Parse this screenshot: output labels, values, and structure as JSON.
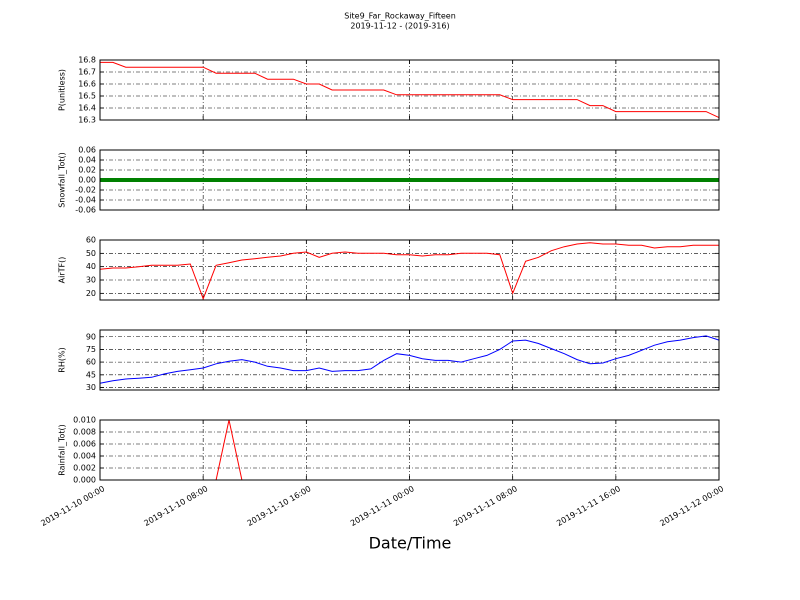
{
  "chart_data": [
    {
      "type": "line",
      "title": "Site9_Far_Rockaway_Fifteen",
      "subtitle": "2019-11-12 - (2019-316)",
      "ylabel": "P(unitless)",
      "x": [
        "2019-11-10 00:00",
        "2019-11-10 01:00",
        "2019-11-10 02:00",
        "2019-11-10 03:00",
        "2019-11-10 04:00",
        "2019-11-10 05:00",
        "2019-11-10 06:00",
        "2019-11-10 07:00",
        "2019-11-10 08:00",
        "2019-11-10 09:00",
        "2019-11-10 10:00",
        "2019-11-10 11:00",
        "2019-11-10 12:00",
        "2019-11-10 13:00",
        "2019-11-10 14:00",
        "2019-11-10 15:00",
        "2019-11-10 16:00",
        "2019-11-10 17:00",
        "2019-11-10 18:00",
        "2019-11-10 19:00",
        "2019-11-10 20:00",
        "2019-11-10 21:00",
        "2019-11-10 22:00",
        "2019-11-10 23:00",
        "2019-11-11 00:00",
        "2019-11-11 01:00",
        "2019-11-11 02:00",
        "2019-11-11 03:00",
        "2019-11-11 04:00",
        "2019-11-11 05:00",
        "2019-11-11 06:00",
        "2019-11-11 07:00",
        "2019-11-11 08:00",
        "2019-11-11 09:00",
        "2019-11-11 10:00",
        "2019-11-11 11:00",
        "2019-11-11 12:00",
        "2019-11-11 13:00",
        "2019-11-11 14:00",
        "2019-11-11 15:00",
        "2019-11-11 16:00",
        "2019-11-11 17:00",
        "2019-11-11 18:00",
        "2019-11-11 19:00",
        "2019-11-11 20:00",
        "2019-11-11 21:00",
        "2019-11-11 22:00",
        "2019-11-11 23:00",
        "2019-11-12 00:00"
      ],
      "series": [
        {
          "color": "#ff0000",
          "values": [
            16.78,
            16.78,
            16.74,
            16.74,
            16.74,
            16.74,
            16.74,
            16.74,
            16.74,
            16.69,
            16.69,
            16.69,
            16.69,
            16.64,
            16.64,
            16.64,
            16.6,
            16.6,
            16.55,
            16.55,
            16.55,
            16.55,
            16.55,
            16.51,
            16.51,
            16.51,
            16.51,
            16.51,
            16.51,
            16.51,
            16.51,
            16.51,
            16.47,
            16.47,
            16.47,
            16.47,
            16.47,
            16.47,
            16.42,
            16.42,
            16.37,
            16.37,
            16.37,
            16.37,
            16.37,
            16.37,
            16.37,
            16.37,
            16.32
          ]
        }
      ],
      "xlim": [
        "2019-11-10 00:00",
        "2019-11-12 00:00"
      ],
      "xticks": [
        "2019-11-10 00:00",
        "2019-11-10 08:00",
        "2019-11-10 16:00",
        "2019-11-11 00:00",
        "2019-11-11 08:00",
        "2019-11-11 16:00",
        "2019-11-12 00:00"
      ],
      "ylim": [
        16.3,
        16.8
      ],
      "yticks": [
        16.3,
        16.4,
        16.5,
        16.6,
        16.7,
        16.8
      ],
      "grid": true
    },
    {
      "type": "line",
      "ylabel": "Snowfall_Tot()",
      "x": [
        "2019-11-10 00:00",
        "2019-11-10 01:00",
        "2019-11-10 02:00",
        "2019-11-10 03:00",
        "2019-11-10 04:00",
        "2019-11-10 05:00",
        "2019-11-10 06:00",
        "2019-11-10 07:00",
        "2019-11-10 08:00",
        "2019-11-10 09:00",
        "2019-11-10 10:00",
        "2019-11-10 11:00",
        "2019-11-10 12:00",
        "2019-11-10 13:00",
        "2019-11-10 14:00",
        "2019-11-10 15:00",
        "2019-11-10 16:00",
        "2019-11-10 17:00",
        "2019-11-10 18:00",
        "2019-11-10 19:00",
        "2019-11-10 20:00",
        "2019-11-10 21:00",
        "2019-11-10 22:00",
        "2019-11-10 23:00",
        "2019-11-11 00:00",
        "2019-11-11 01:00",
        "2019-11-11 02:00",
        "2019-11-11 03:00",
        "2019-11-11 04:00",
        "2019-11-11 05:00",
        "2019-11-11 06:00",
        "2019-11-11 07:00",
        "2019-11-11 08:00",
        "2019-11-11 09:00",
        "2019-11-11 10:00",
        "2019-11-11 11:00",
        "2019-11-11 12:00",
        "2019-11-11 13:00",
        "2019-11-11 14:00",
        "2019-11-11 15:00",
        "2019-11-11 16:00",
        "2019-11-11 17:00",
        "2019-11-11 18:00",
        "2019-11-11 19:00",
        "2019-11-11 20:00",
        "2019-11-11 21:00",
        "2019-11-11 22:00",
        "2019-11-11 23:00",
        "2019-11-12 00:00"
      ],
      "series": [
        {
          "color": "#008000",
          "values": [
            0,
            0,
            0,
            0,
            0,
            0,
            0,
            0,
            0,
            0,
            0,
            0,
            0,
            0,
            0,
            0,
            0,
            0,
            0,
            0,
            0,
            0,
            0,
            0,
            0,
            0,
            0,
            0,
            0,
            0,
            0,
            0,
            0,
            0,
            0,
            0,
            0,
            0,
            0,
            0,
            0,
            0,
            0,
            0,
            0,
            0,
            0,
            0,
            0
          ]
        }
      ],
      "xlim": [
        "2019-11-10 00:00",
        "2019-11-12 00:00"
      ],
      "xticks": [
        "2019-11-10 00:00",
        "2019-11-10 08:00",
        "2019-11-10 16:00",
        "2019-11-11 00:00",
        "2019-11-11 08:00",
        "2019-11-11 16:00",
        "2019-11-12 00:00"
      ],
      "ylim": [
        -0.06,
        0.06
      ],
      "yticks": [
        -0.06,
        -0.04,
        -0.02,
        {
          "value": 0,
          "label": "0.00"
        },
        0.02,
        0.04,
        0.06
      ],
      "grid": true
    },
    {
      "type": "line",
      "ylabel": "AirTF()",
      "x": [
        "2019-11-10 00:00",
        "2019-11-10 01:00",
        "2019-11-10 02:00",
        "2019-11-10 03:00",
        "2019-11-10 04:00",
        "2019-11-10 05:00",
        "2019-11-10 06:00",
        "2019-11-10 07:00",
        "2019-11-10 08:00",
        "2019-11-10 09:00",
        "2019-11-10 10:00",
        "2019-11-10 11:00",
        "2019-11-10 12:00",
        "2019-11-10 13:00",
        "2019-11-10 14:00",
        "2019-11-10 15:00",
        "2019-11-10 16:00",
        "2019-11-10 17:00",
        "2019-11-10 18:00",
        "2019-11-10 19:00",
        "2019-11-10 20:00",
        "2019-11-10 21:00",
        "2019-11-10 22:00",
        "2019-11-10 23:00",
        "2019-11-11 00:00",
        "2019-11-11 01:00",
        "2019-11-11 02:00",
        "2019-11-11 03:00",
        "2019-11-11 04:00",
        "2019-11-11 05:00",
        "2019-11-11 06:00",
        "2019-11-11 07:00",
        "2019-11-11 08:00",
        "2019-11-11 09:00",
        "2019-11-11 10:00",
        "2019-11-11 11:00",
        "2019-11-11 12:00",
        "2019-11-11 13:00",
        "2019-11-11 14:00",
        "2019-11-11 15:00",
        "2019-11-11 16:00",
        "2019-11-11 17:00",
        "2019-11-11 18:00",
        "2019-11-11 19:00",
        "2019-11-11 20:00",
        "2019-11-11 21:00",
        "2019-11-11 22:00",
        "2019-11-11 23:00",
        "2019-11-12 00:00"
      ],
      "series": [
        {
          "color": "#ff0000",
          "values": [
            38,
            39,
            39,
            40,
            41,
            41,
            41,
            42,
            16,
            41,
            43,
            45,
            46,
            47,
            48,
            50,
            51,
            47,
            50,
            51,
            50,
            50,
            50,
            49,
            49,
            48,
            49,
            49,
            50,
            50,
            50,
            49,
            20,
            44,
            47,
            52,
            55,
            57,
            58,
            57,
            57,
            56,
            56,
            54,
            55,
            55,
            56,
            56,
            56
          ]
        }
      ],
      "xlim": [
        "2019-11-10 00:00",
        "2019-11-12 00:00"
      ],
      "xticks": [
        "2019-11-10 00:00",
        "2019-11-10 08:00",
        "2019-11-10 16:00",
        "2019-11-11 00:00",
        "2019-11-11 08:00",
        "2019-11-11 16:00",
        "2019-11-12 00:00"
      ],
      "ylim": [
        15,
        60
      ],
      "yticks": [
        20,
        30,
        40,
        50,
        60
      ],
      "grid": true
    },
    {
      "type": "line",
      "ylabel": "RH(%)",
      "x": [
        "2019-11-10 00:00",
        "2019-11-10 01:00",
        "2019-11-10 02:00",
        "2019-11-10 03:00",
        "2019-11-10 04:00",
        "2019-11-10 05:00",
        "2019-11-10 06:00",
        "2019-11-10 07:00",
        "2019-11-10 08:00",
        "2019-11-10 09:00",
        "2019-11-10 10:00",
        "2019-11-10 11:00",
        "2019-11-10 12:00",
        "2019-11-10 13:00",
        "2019-11-10 14:00",
        "2019-11-10 15:00",
        "2019-11-10 16:00",
        "2019-11-10 17:00",
        "2019-11-10 18:00",
        "2019-11-10 19:00",
        "2019-11-10 20:00",
        "2019-11-10 21:00",
        "2019-11-10 22:00",
        "2019-11-10 23:00",
        "2019-11-11 00:00",
        "2019-11-11 01:00",
        "2019-11-11 02:00",
        "2019-11-11 03:00",
        "2019-11-11 04:00",
        "2019-11-11 05:00",
        "2019-11-11 06:00",
        "2019-11-11 07:00",
        "2019-11-11 08:00",
        "2019-11-11 09:00",
        "2019-11-11 10:00",
        "2019-11-11 11:00",
        "2019-11-11 12:00",
        "2019-11-11 13:00",
        "2019-11-11 14:00",
        "2019-11-11 15:00",
        "2019-11-11 16:00",
        "2019-11-11 17:00",
        "2019-11-11 18:00",
        "2019-11-11 19:00",
        "2019-11-11 20:00",
        "2019-11-11 21:00",
        "2019-11-11 22:00",
        "2019-11-11 23:00",
        "2019-11-12 00:00"
      ],
      "series": [
        {
          "color": "#0000ff",
          "values": [
            35,
            38,
            40,
            41,
            42,
            46,
            49,
            51,
            53,
            58,
            61,
            63,
            60,
            55,
            53,
            50,
            50,
            53,
            49,
            50,
            50,
            52,
            62,
            70,
            68,
            64,
            62,
            62,
            60,
            64,
            68,
            75,
            85,
            86,
            82,
            76,
            70,
            63,
            58,
            59,
            64,
            68,
            74,
            80,
            84,
            86,
            89,
            91,
            86
          ]
        }
      ],
      "xlim": [
        "2019-11-10 00:00",
        "2019-11-12 00:00"
      ],
      "xticks": [
        "2019-11-10 00:00",
        "2019-11-10 08:00",
        "2019-11-10 16:00",
        "2019-11-11 00:00",
        "2019-11-11 08:00",
        "2019-11-11 16:00",
        "2019-11-12 00:00"
      ],
      "ylim": [
        27,
        98
      ],
      "yticks": [
        30,
        45,
        60,
        75,
        90
      ],
      "grid": true
    },
    {
      "type": "line",
      "ylabel": "Rainfall_Tot()",
      "xlabel": "Date/Time",
      "x": [
        "2019-11-10 00:00",
        "2019-11-10 01:00",
        "2019-11-10 02:00",
        "2019-11-10 03:00",
        "2019-11-10 04:00",
        "2019-11-10 05:00",
        "2019-11-10 06:00",
        "2019-11-10 07:00",
        "2019-11-10 08:00",
        "2019-11-10 09:00",
        "2019-11-10 10:00",
        "2019-11-10 11:00",
        "2019-11-10 12:00",
        "2019-11-10 13:00",
        "2019-11-10 14:00",
        "2019-11-10 15:00",
        "2019-11-10 16:00",
        "2019-11-10 17:00",
        "2019-11-10 18:00",
        "2019-11-10 19:00",
        "2019-11-10 20:00",
        "2019-11-10 21:00",
        "2019-11-10 22:00",
        "2019-11-10 23:00",
        "2019-11-11 00:00",
        "2019-11-11 01:00",
        "2019-11-11 02:00",
        "2019-11-11 03:00",
        "2019-11-11 04:00",
        "2019-11-11 05:00",
        "2019-11-11 06:00",
        "2019-11-11 07:00",
        "2019-11-11 08:00",
        "2019-11-11 09:00",
        "2019-11-11 10:00",
        "2019-11-11 11:00",
        "2019-11-11 12:00",
        "2019-11-11 13:00",
        "2019-11-11 14:00",
        "2019-11-11 15:00",
        "2019-11-11 16:00",
        "2019-11-11 17:00",
        "2019-11-11 18:00",
        "2019-11-11 19:00",
        "2019-11-11 20:00",
        "2019-11-11 21:00",
        "2019-11-11 22:00",
        "2019-11-11 23:00",
        "2019-11-12 00:00"
      ],
      "series": [
        {
          "color": "#ff0000",
          "values": [
            0,
            0,
            0,
            0,
            0,
            0,
            0,
            0,
            0,
            0,
            0.01,
            0,
            0,
            0,
            0,
            0,
            0,
            0,
            0,
            0,
            0,
            0,
            0,
            0,
            0,
            0,
            0,
            0,
            0,
            0,
            0,
            0,
            0,
            0,
            0,
            0,
            0,
            0,
            0,
            0,
            0,
            0,
            0,
            0,
            0,
            0,
            0,
            0,
            0
          ]
        }
      ],
      "xlim": [
        "2019-11-10 00:00",
        "2019-11-12 00:00"
      ],
      "xticks": [
        "2019-11-10 00:00",
        "2019-11-10 08:00",
        "2019-11-10 16:00",
        "2019-11-11 00:00",
        "2019-11-11 08:00",
        "2019-11-11 16:00",
        "2019-11-12 00:00"
      ],
      "ylim": [
        0,
        0.01
      ],
      "yticks": [
        {
          "value": 0,
          "label": "0.000"
        },
        0.002,
        0.004,
        0.006,
        0.008,
        {
          "value": 0.01,
          "label": "0.010"
        }
      ],
      "grid": true
    }
  ]
}
